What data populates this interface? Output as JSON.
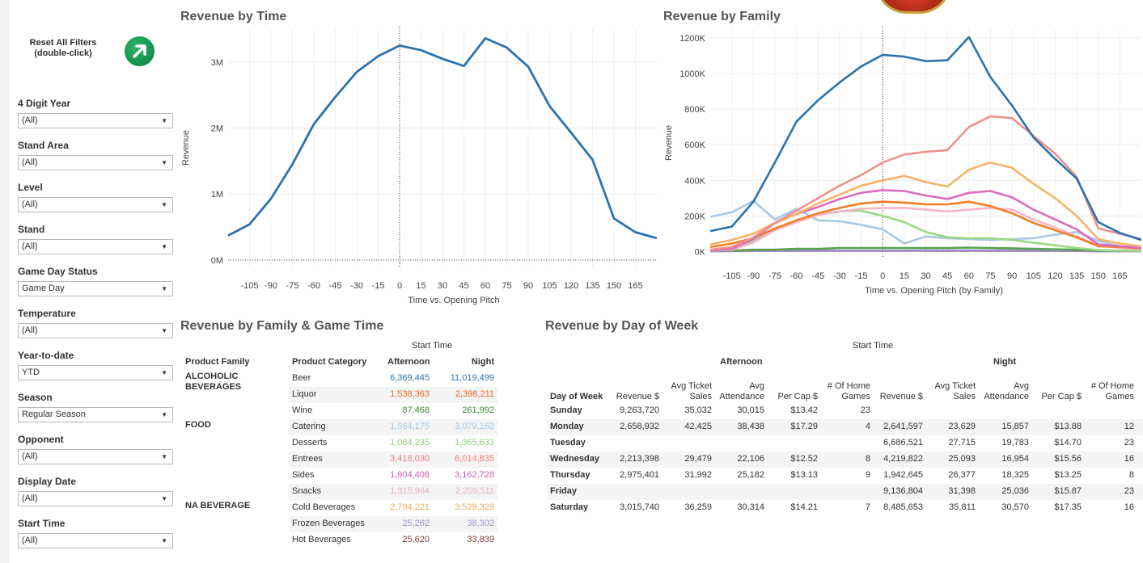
{
  "reset": {
    "line1": "Reset All Filters",
    "line2": "(double-click)"
  },
  "filters": [
    {
      "label": "4 Digit Year",
      "value": "(All)"
    },
    {
      "label": "Stand Area",
      "value": "(All)"
    },
    {
      "label": "Level",
      "value": "(All)"
    },
    {
      "label": "Stand",
      "value": "(All)"
    },
    {
      "label": "Game Day Status",
      "value": "Game Day"
    },
    {
      "label": "Temperature",
      "value": "(All)"
    },
    {
      "label": "Year-to-date",
      "value": "YTD"
    },
    {
      "label": "Season",
      "value": "Regular Season"
    },
    {
      "label": "Opponent",
      "value": "(All)"
    },
    {
      "label": "Display Date",
      "value": "(All)"
    },
    {
      "label": "Start Time",
      "value": "(All)"
    }
  ],
  "chart_data": [
    {
      "type": "line",
      "title": "Revenue by Time",
      "xlabel": "Time vs. Opening Pitch",
      "ylabel": "Revenue",
      "xlim": [
        -120,
        180
      ],
      "ylim": [
        -0.1,
        3.5
      ],
      "xticks": [
        "-105",
        "-90",
        "-75",
        "-60",
        "-45",
        "-30",
        "-15",
        "0",
        "15",
        "30",
        "45",
        "60",
        "75",
        "90",
        "105",
        "120",
        "135",
        "150",
        "165"
      ],
      "yticks": [
        "0M",
        "1M",
        "2M",
        "3M"
      ],
      "series": [
        {
          "name": "Revenue",
          "color": "#2a73ae",
          "x": [
            -120,
            -105,
            -90,
            -75,
            -60,
            -45,
            -30,
            -15,
            0,
            15,
            30,
            45,
            60,
            75,
            90,
            105,
            120,
            135,
            150,
            165,
            180
          ],
          "y": [
            0.37,
            0.54,
            0.93,
            1.45,
            2.06,
            2.47,
            2.85,
            3.09,
            3.25,
            3.18,
            3.05,
            2.94,
            3.36,
            3.22,
            2.93,
            2.33,
            1.93,
            1.52,
            0.63,
            0.42,
            0.33
          ]
        }
      ]
    },
    {
      "type": "line",
      "title": "Revenue by Family",
      "xlabel": "Time vs. Opening Pitch (by Family)",
      "ylabel": "Revenue",
      "xlim": [
        -120,
        180
      ],
      "ylim": [
        -30,
        1250
      ],
      "xticks": [
        "-105",
        "-90",
        "-75",
        "-60",
        "-45",
        "-30",
        "-15",
        "0",
        "15",
        "30",
        "45",
        "60",
        "75",
        "90",
        "105",
        "120",
        "135",
        "150",
        "165"
      ],
      "yticks": [
        "0K",
        "200K",
        "400K",
        "600K",
        "800K",
        "1000K",
        "1200K"
      ],
      "x": [
        -120,
        -105,
        -90,
        -75,
        -60,
        -45,
        -30,
        -15,
        0,
        15,
        30,
        45,
        60,
        75,
        90,
        105,
        120,
        135,
        150,
        165,
        180
      ],
      "series": [
        {
          "name": "Food",
          "color": "#2a73ae",
          "y": [
            115,
            140,
            280,
            500,
            730,
            850,
            950,
            1040,
            1105,
            1095,
            1070,
            1075,
            1205,
            980,
            820,
            640,
            520,
            410,
            165,
            105,
            65
          ]
        },
        {
          "name": "Entrees",
          "color": "#f2908c",
          "y": [
            10,
            25,
            80,
            160,
            230,
            300,
            370,
            430,
            500,
            545,
            560,
            570,
            700,
            760,
            750,
            650,
            550,
            420,
            130,
            100,
            70
          ]
        },
        {
          "name": "Cold Beverages",
          "color": "#f7b366",
          "y": [
            40,
            65,
            100,
            160,
            210,
            270,
            320,
            370,
            400,
            425,
            390,
            365,
            460,
            500,
            470,
            380,
            300,
            200,
            70,
            45,
            30
          ]
        },
        {
          "name": "Sides",
          "color": "#db6bc0",
          "y": [
            5,
            15,
            70,
            160,
            210,
            250,
            295,
            330,
            345,
            340,
            315,
            295,
            330,
            340,
            305,
            235,
            180,
            125,
            40,
            30,
            20
          ]
        },
        {
          "name": "Alcoholic Beverages",
          "color": "#f47e25",
          "y": [
            25,
            45,
            75,
            130,
            175,
            215,
            245,
            270,
            280,
            275,
            265,
            265,
            280,
            255,
            215,
            160,
            120,
            80,
            30,
            25,
            18
          ]
        },
        {
          "name": "Snacks",
          "color": "#f5b6cb",
          "y": [
            5,
            10,
            50,
            120,
            165,
            205,
            225,
            240,
            245,
            245,
            235,
            225,
            235,
            245,
            235,
            180,
            135,
            85,
            35,
            20,
            15
          ]
        },
        {
          "name": "Desserts",
          "color": "#9ad985",
          "y": [
            10,
            25,
            60,
            130,
            175,
            210,
            225,
            230,
            200,
            165,
            110,
            80,
            75,
            75,
            65,
            50,
            35,
            20,
            8,
            5,
            3
          ]
        },
        {
          "name": "Catering",
          "color": "#a9c8e6",
          "y": [
            195,
            220,
            285,
            180,
            240,
            175,
            170,
            150,
            125,
            45,
            85,
            75,
            70,
            65,
            70,
            75,
            95,
            110,
            60,
            30,
            25
          ]
        },
        {
          "name": "Wine",
          "color": "#59a14f",
          "y": [
            5,
            5,
            10,
            10,
            15,
            15,
            20,
            20,
            20,
            20,
            20,
            20,
            22,
            20,
            18,
            15,
            12,
            10,
            5,
            5,
            3
          ]
        },
        {
          "name": "Frozen Beverages",
          "color": "#9f8fcf",
          "y": [
            2,
            2,
            3,
            3,
            4,
            4,
            5,
            5,
            5,
            5,
            6,
            6,
            6,
            6,
            6,
            5,
            5,
            4,
            2,
            2,
            2
          ]
        },
        {
          "name": "Hot Beverages",
          "color": "#7f5a3f",
          "y": [
            2,
            3,
            3,
            4,
            4,
            5,
            5,
            5,
            5,
            5,
            5,
            5,
            5,
            5,
            5,
            4,
            4,
            3,
            2,
            2,
            2
          ]
        }
      ]
    }
  ],
  "family_table": {
    "title": "Revenue by Family & Game Time",
    "group_header": "Start Time",
    "headers": {
      "family": "Product Family",
      "category": "Product Category",
      "afternoon": "Afternoon",
      "night": "Night"
    },
    "rows": [
      {
        "family": "ALCOHOLIC BEVERAGES",
        "category": "Beer",
        "afternoon": "6,369,445",
        "night": "11,019,499",
        "color": "#2a73ae"
      },
      {
        "family": "",
        "category": "Liquor",
        "afternoon": "1,538,363",
        "night": "2,398,211",
        "color": "#e8671a"
      },
      {
        "family": "",
        "category": "Wine",
        "afternoon": "87,468",
        "night": "261,992",
        "color": "#3d8a34"
      },
      {
        "family": "FOOD",
        "category": "Catering",
        "afternoon": "1,564,175",
        "night": "3,079,162",
        "color": "#a9c8e6"
      },
      {
        "family": "",
        "category": "Desserts",
        "afternoon": "1,084,235",
        "night": "1,365,633",
        "color": "#8fd07a"
      },
      {
        "family": "",
        "category": "Entrees",
        "afternoon": "3,418,030",
        "night": "6,014,835",
        "color": "#ec7d78"
      },
      {
        "family": "",
        "category": "Sides",
        "afternoon": "1,904,408",
        "night": "3,162,728",
        "color": "#d35ab6"
      },
      {
        "family": "",
        "category": "Snacks",
        "afternoon": "1,315,964",
        "night": "2,209,511",
        "color": "#f3adc4"
      },
      {
        "family": "NA BEVERAGE",
        "category": "Cold Beverages",
        "afternoon": "2,794,221",
        "night": "3,529,329",
        "color": "#f4a95a"
      },
      {
        "family": "",
        "category": "Frozen Beverages",
        "afternoon": "25,262",
        "night": "38,302",
        "color": "#9f8fcf"
      },
      {
        "family": "",
        "category": "Hot Beverages",
        "afternoon": "25,620",
        "night": "33,839",
        "color": "#7f3f2a"
      }
    ]
  },
  "dow_table": {
    "title": "Revenue by Day of Week",
    "group_header": "Start Time",
    "afternoon_label": "Afternoon",
    "night_label": "Night",
    "headers": {
      "day": "Day of Week",
      "revenue": "Revenue $",
      "avg_ticket_1": "Avg Ticket",
      "avg_ticket_2": "Sales",
      "avg_att_1": "Avg",
      "avg_att_2": "Attendance",
      "per_cap": "Per Cap $",
      "games_1": "# Of Home",
      "games_2": "Games"
    },
    "rows": [
      {
        "day": "Sunday",
        "a_rev": "9,263,720",
        "a_ticket": "35,032",
        "a_att": "30,015",
        "a_cap": "$13.42",
        "a_games": "23",
        "n_rev": "",
        "n_ticket": "",
        "n_att": "",
        "n_cap": "",
        "n_games": ""
      },
      {
        "day": "Monday",
        "a_rev": "2,658,932",
        "a_ticket": "42,425",
        "a_att": "38,438",
        "a_cap": "$17.29",
        "a_games": "4",
        "n_rev": "2,641,597",
        "n_ticket": "23,629",
        "n_att": "15,857",
        "n_cap": "$13.88",
        "n_games": "12"
      },
      {
        "day": "Tuesday",
        "a_rev": "",
        "a_ticket": "",
        "a_att": "",
        "a_cap": "",
        "a_games": "",
        "n_rev": "6,686,521",
        "n_ticket": "27,715",
        "n_att": "19,783",
        "n_cap": "$14.70",
        "n_games": "23"
      },
      {
        "day": "Wednesday",
        "a_rev": "2,213,398",
        "a_ticket": "29,479",
        "a_att": "22,106",
        "a_cap": "$12.52",
        "a_games": "8",
        "n_rev": "4,219,822",
        "n_ticket": "25,093",
        "n_att": "16,954",
        "n_cap": "$15.56",
        "n_games": "16"
      },
      {
        "day": "Thursday",
        "a_rev": "2,975,401",
        "a_ticket": "31,992",
        "a_att": "25,182",
        "a_cap": "$13.13",
        "a_games": "9",
        "n_rev": "1,942,645",
        "n_ticket": "26,377",
        "n_att": "18,325",
        "n_cap": "$13.25",
        "n_games": "8"
      },
      {
        "day": "Friday",
        "a_rev": "",
        "a_ticket": "",
        "a_att": "",
        "a_cap": "",
        "a_games": "",
        "n_rev": "9,136,804",
        "n_ticket": "31,398",
        "n_att": "25,036",
        "n_cap": "$15.87",
        "n_games": "23"
      },
      {
        "day": "Saturday",
        "a_rev": "3,015,740",
        "a_ticket": "36,259",
        "a_att": "30,314",
        "a_cap": "$14.21",
        "a_games": "7",
        "n_rev": "8,485,653",
        "n_ticket": "35,811",
        "n_att": "30,570",
        "n_cap": "$17.35",
        "n_games": "16"
      }
    ]
  }
}
